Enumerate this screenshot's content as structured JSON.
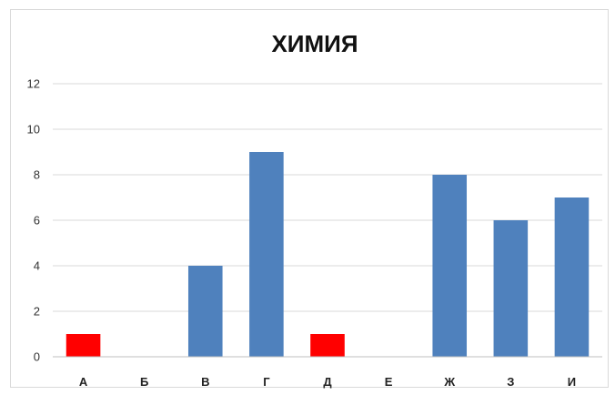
{
  "chart_data": {
    "type": "bar",
    "title": "ХИМИЯ",
    "categories": [
      "А",
      "Б",
      "В",
      "Г",
      "Д",
      "Е",
      "Ж",
      "З",
      "И"
    ],
    "values": [
      1,
      0,
      4,
      9,
      1,
      0,
      8,
      6,
      7
    ],
    "highlight": [
      true,
      false,
      false,
      false,
      true,
      false,
      false,
      false,
      false
    ],
    "colors": {
      "default": "#4f81bd",
      "highlight": "#ff0000",
      "grid": "#d9d9d9",
      "axis": "#bfbfbf"
    },
    "ylim": [
      0,
      12
    ],
    "yticks": [
      0,
      2,
      4,
      6,
      8,
      10,
      12
    ],
    "grid": true,
    "xlabel": "",
    "ylabel": ""
  }
}
